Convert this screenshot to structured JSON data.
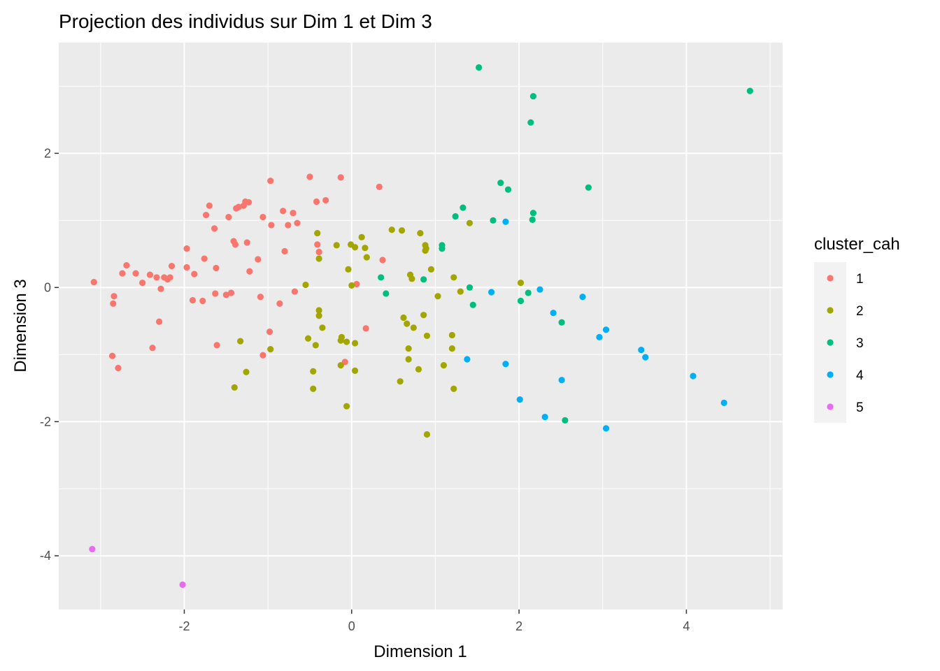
{
  "chart_data": {
    "type": "scatter",
    "title": "Projection des individus sur Dim 1 et Dim 3",
    "xlabel": "Dimension 1",
    "ylabel": "Dimension 3",
    "xlim": [
      -3.5,
      5.15
    ],
    "ylim": [
      -4.8,
      3.65
    ],
    "x_ticks": [
      -2,
      0,
      2,
      4
    ],
    "y_ticks": [
      -4,
      -2,
      0,
      2
    ],
    "x_tick_labels": [
      "-2",
      "0",
      "2",
      "4"
    ],
    "y_tick_labels": [
      "-4",
      "-2",
      "0",
      "2"
    ],
    "grid": true,
    "legend": {
      "title": "cluster_cah",
      "position": "right"
    },
    "series": [
      {
        "name": "1",
        "color": "#F8766D",
        "points": [
          [
            -3.08,
            0.08
          ],
          [
            -2.84,
            -0.13
          ],
          [
            -2.85,
            -0.24
          ],
          [
            -2.86,
            -1.02
          ],
          [
            -2.79,
            -1.2
          ],
          [
            -2.74,
            0.21
          ],
          [
            -2.69,
            0.33
          ],
          [
            -2.58,
            0.21
          ],
          [
            -2.5,
            0.07
          ],
          [
            -2.41,
            0.19
          ],
          [
            -2.38,
            -0.9
          ],
          [
            -2.33,
            0.15
          ],
          [
            -2.3,
            -0.51
          ],
          [
            -2.28,
            -0.02
          ],
          [
            -2.24,
            0.15
          ],
          [
            -2.2,
            0.12
          ],
          [
            -2.17,
            0.15
          ],
          [
            -2.15,
            0.32
          ],
          [
            -1.97,
            0.58
          ],
          [
            -1.97,
            0.3
          ],
          [
            -1.9,
            -0.19
          ],
          [
            -1.88,
            0.2
          ],
          [
            -1.78,
            -0.2
          ],
          [
            -1.76,
            0.43
          ],
          [
            -1.74,
            1.08
          ],
          [
            -1.7,
            1.22
          ],
          [
            -1.64,
            0.88
          ],
          [
            -1.63,
            -0.09
          ],
          [
            -1.62,
            0.29
          ],
          [
            -1.61,
            -0.86
          ],
          [
            -1.5,
            -0.11
          ],
          [
            -1.44,
            -0.08
          ],
          [
            -1.47,
            1.05
          ],
          [
            -1.41,
            0.69
          ],
          [
            -1.39,
            0.64
          ],
          [
            -1.38,
            1.18
          ],
          [
            -1.35,
            1.2
          ],
          [
            -1.29,
            1.22
          ],
          [
            -1.27,
            1.28
          ],
          [
            -1.25,
            0.67
          ],
          [
            -1.23,
            1.27
          ],
          [
            -1.22,
            0.24
          ],
          [
            -1.12,
            0.42
          ],
          [
            -1.09,
            -0.14
          ],
          [
            -1.06,
            1.05
          ],
          [
            -1.06,
            -1.01
          ],
          [
            -0.98,
            -0.66
          ],
          [
            -0.97,
            1.59
          ],
          [
            -0.96,
            0.93
          ],
          [
            -0.86,
            -0.24
          ],
          [
            -0.82,
            1.14
          ],
          [
            -0.8,
            0.54
          ],
          [
            -0.76,
            0.93
          ],
          [
            -0.7,
            1.11
          ],
          [
            -0.68,
            -0.06
          ],
          [
            -0.65,
            0.96
          ],
          [
            -0.5,
            1.65
          ],
          [
            -0.42,
            1.28
          ],
          [
            -0.41,
            0.64
          ],
          [
            -0.39,
            0.53
          ],
          [
            -0.31,
            1.3
          ],
          [
            -0.13,
            1.64
          ],
          [
            -0.08,
            -1.11
          ],
          [
            0.06,
            0.05
          ],
          [
            0.17,
            -0.61
          ],
          [
            0.33,
            1.5
          ],
          [
            0.37,
            0.41
          ]
        ]
      },
      {
        "name": "2",
        "color": "#A3A500",
        "points": [
          [
            -1.4,
            -1.49
          ],
          [
            -1.33,
            -0.8
          ],
          [
            -1.26,
            -1.26
          ],
          [
            -0.97,
            -0.92
          ],
          [
            -0.55,
            0.04
          ],
          [
            -0.52,
            -0.76
          ],
          [
            -0.46,
            -1.25
          ],
          [
            -0.46,
            -1.51
          ],
          [
            -0.43,
            -0.86
          ],
          [
            -0.41,
            0.81
          ],
          [
            -0.39,
            0.43
          ],
          [
            -0.39,
            -0.42
          ],
          [
            -0.39,
            -0.34
          ],
          [
            -0.35,
            -0.6
          ],
          [
            -0.18,
            0.63
          ],
          [
            -0.13,
            -0.79
          ],
          [
            -0.13,
            -1.16
          ],
          [
            -0.12,
            -0.74
          ],
          [
            -0.06,
            -0.81
          ],
          [
            -0.06,
            -1.77
          ],
          [
            -0.04,
            0.27
          ],
          [
            -0.01,
            0.64
          ],
          [
            0.0,
            0.03
          ],
          [
            0.04,
            0.6
          ],
          [
            0.04,
            -1.24
          ],
          [
            0.04,
            -0.83
          ],
          [
            0.12,
            0.75
          ],
          [
            0.16,
            0.59
          ],
          [
            0.18,
            0.45
          ],
          [
            0.48,
            0.86
          ],
          [
            0.58,
            -1.4
          ],
          [
            0.6,
            0.85
          ],
          [
            0.62,
            -0.45
          ],
          [
            0.66,
            -0.54
          ],
          [
            0.68,
            -0.91
          ],
          [
            0.68,
            -1.07
          ],
          [
            0.7,
            0.19
          ],
          [
            0.72,
            0.13
          ],
          [
            0.74,
            -0.6
          ],
          [
            0.8,
            -1.22
          ],
          [
            0.82,
            0.81
          ],
          [
            0.86,
            -0.41
          ],
          [
            0.88,
            0.55
          ],
          [
            0.88,
            0.63
          ],
          [
            0.89,
            0.58
          ],
          [
            0.9,
            -0.72
          ],
          [
            0.9,
            -2.19
          ],
          [
            0.95,
            0.27
          ],
          [
            1.03,
            -0.13
          ],
          [
            1.1,
            -1.16
          ],
          [
            1.2,
            -0.71
          ],
          [
            1.2,
            -0.91
          ],
          [
            1.22,
            0.15
          ],
          [
            1.22,
            -1.51
          ],
          [
            1.3,
            -0.06
          ],
          [
            1.41,
            0.96
          ],
          [
            2.02,
            0.07
          ]
        ]
      },
      {
        "name": "3",
        "color": "#00BF7D",
        "points": [
          [
            1.52,
            3.28
          ],
          [
            2.17,
            2.85
          ],
          [
            2.14,
            2.46
          ],
          [
            4.76,
            2.93
          ],
          [
            1.78,
            1.56
          ],
          [
            1.87,
            1.46
          ],
          [
            2.83,
            1.49
          ],
          [
            1.33,
            1.19
          ],
          [
            1.24,
            1.06
          ],
          [
            2.17,
            1.11
          ],
          [
            2.16,
            1.01
          ],
          [
            1.69,
            1.0
          ],
          [
            1.08,
            0.63
          ],
          [
            1.08,
            0.58
          ],
          [
            0.35,
            0.15
          ],
          [
            0.86,
            0.12
          ],
          [
            0.41,
            -0.09
          ],
          [
            1.41,
            0.0
          ],
          [
            2.11,
            -0.08
          ],
          [
            1.45,
            -0.26
          ],
          [
            2.02,
            -0.2
          ],
          [
            2.51,
            -0.52
          ],
          [
            2.55,
            -1.98
          ]
        ]
      },
      {
        "name": "4",
        "color": "#00B0F6",
        "points": [
          [
            1.84,
            0.98
          ],
          [
            2.25,
            -0.03
          ],
          [
            1.67,
            -0.07
          ],
          [
            2.76,
            -0.14
          ],
          [
            2.41,
            -0.38
          ],
          [
            3.04,
            -0.63
          ],
          [
            2.96,
            -0.74
          ],
          [
            3.46,
            -0.93
          ],
          [
            3.51,
            -1.04
          ],
          [
            1.38,
            -1.07
          ],
          [
            1.84,
            -1.14
          ],
          [
            4.08,
            -1.32
          ],
          [
            2.51,
            -1.38
          ],
          [
            2.01,
            -1.67
          ],
          [
            4.45,
            -1.72
          ],
          [
            2.31,
            -1.93
          ],
          [
            3.04,
            -2.1
          ]
        ]
      },
      {
        "name": "5",
        "color": "#E76BF3",
        "points": [
          [
            -3.1,
            -3.9
          ],
          [
            -2.02,
            -4.43
          ]
        ]
      }
    ]
  }
}
